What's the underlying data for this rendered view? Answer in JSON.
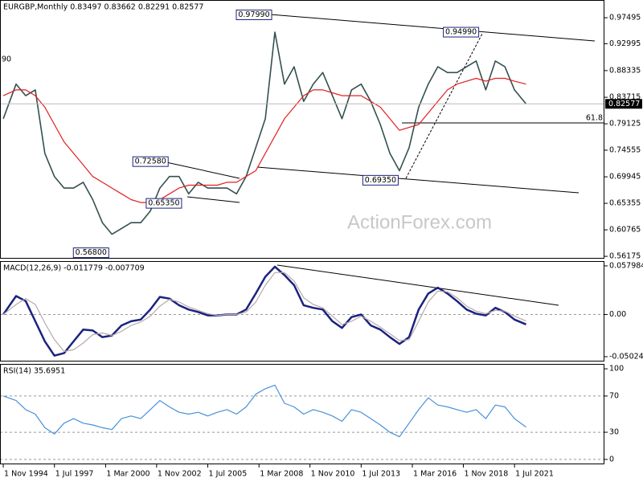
{
  "chart_data": [
    {
      "type": "line",
      "title": "EURGBP,Monthly  0.83497 0.83662 0.82291 0.82577",
      "watermark": "ActionForex.com",
      "edge_label": "90",
      "x": [
        1994.83,
        1995.5,
        1996.0,
        1996.5,
        1997.0,
        1997.5,
        1998.0,
        1998.5,
        1999.0,
        1999.5,
        2000.0,
        2000.5,
        2001.0,
        2001.5,
        2002.0,
        2002.5,
        2003.0,
        2003.5,
        2004.0,
        2004.5,
        2005.0,
        2005.5,
        2006.0,
        2006.5,
        2007.0,
        2007.5,
        2008.0,
        2008.5,
        2009.0,
        2009.5,
        2010.0,
        2010.5,
        2011.0,
        2011.5,
        2012.0,
        2012.5,
        2013.0,
        2013.5,
        2014.0,
        2014.5,
        2015.0,
        2015.5,
        2016.0,
        2016.5,
        2017.0,
        2017.5,
        2018.0,
        2018.5,
        2019.0,
        2019.5,
        2020.0,
        2020.5,
        2021.0,
        2021.5,
        2022.1
      ],
      "series": [
        {
          "name": "EURGBP",
          "color": "#34504f",
          "values": [
            0.8,
            0.86,
            0.84,
            0.85,
            0.74,
            0.7,
            0.68,
            0.68,
            0.69,
            0.66,
            0.62,
            0.6,
            0.61,
            0.62,
            0.62,
            0.64,
            0.68,
            0.7,
            0.7,
            0.67,
            0.69,
            0.68,
            0.68,
            0.68,
            0.67,
            0.7,
            0.75,
            0.8,
            0.95,
            0.86,
            0.89,
            0.83,
            0.86,
            0.88,
            0.84,
            0.8,
            0.85,
            0.86,
            0.83,
            0.79,
            0.74,
            0.71,
            0.75,
            0.82,
            0.86,
            0.89,
            0.88,
            0.88,
            0.89,
            0.9,
            0.85,
            0.9,
            0.89,
            0.85,
            0.82577
          ]
        },
        {
          "name": "MA",
          "color": "#e02020",
          "values": [
            0.84,
            0.85,
            0.85,
            0.84,
            0.82,
            0.79,
            0.76,
            0.74,
            0.72,
            0.7,
            0.69,
            0.68,
            0.67,
            0.66,
            0.655,
            0.655,
            0.66,
            0.67,
            0.68,
            0.685,
            0.685,
            0.685,
            0.685,
            0.69,
            0.69,
            0.7,
            0.71,
            0.74,
            0.77,
            0.8,
            0.82,
            0.84,
            0.85,
            0.85,
            0.845,
            0.84,
            0.84,
            0.84,
            0.83,
            0.82,
            0.8,
            0.78,
            0.785,
            0.79,
            0.81,
            0.83,
            0.85,
            0.86,
            0.865,
            0.87,
            0.865,
            0.87,
            0.87,
            0.865,
            0.86
          ]
        }
      ],
      "annotations": [
        {
          "x": 2009.0,
          "value": 0.9799,
          "label": "0.97990"
        },
        {
          "x": 2019.8,
          "value": 0.9499,
          "label": "0.94990"
        },
        {
          "x": 2003.6,
          "value": 0.7258,
          "label": "0.72580"
        },
        {
          "x": 2004.3,
          "value": 0.6535,
          "label": "0.65350"
        },
        {
          "x": 2015.6,
          "value": 0.6935,
          "label": "0.69350"
        },
        {
          "x": 2000.5,
          "value": 0.568,
          "label": "0.56800"
        }
      ],
      "levels": [
        {
          "value": 0.7927,
          "label": "61.8"
        }
      ],
      "xlim": [
        1994.66,
        2026.19
      ],
      "ylim": [
        0.5577,
        1.0056
      ],
      "yticks": [
        0.56175,
        0.60765,
        0.65355,
        0.69945,
        0.74555,
        0.79125,
        0.83715,
        0.88335,
        0.92995,
        0.97495
      ]
    },
    {
      "type": "line",
      "title": "MACD(12,26,9) -0.011779 -0.007709",
      "x": [
        1994.83,
        1995.5,
        1996.0,
        1996.5,
        1997.0,
        1997.5,
        1998.0,
        1998.5,
        1999.0,
        1999.5,
        2000.0,
        2000.5,
        2001.0,
        2001.5,
        2002.0,
        2002.5,
        2003.0,
        2003.5,
        2004.0,
        2004.5,
        2005.0,
        2005.5,
        2006.0,
        2006.5,
        2007.0,
        2007.5,
        2008.0,
        2008.5,
        2009.0,
        2009.5,
        2010.0,
        2010.5,
        2011.0,
        2011.5,
        2012.0,
        2012.5,
        2013.0,
        2013.5,
        2014.0,
        2014.5,
        2015.0,
        2015.5,
        2016.0,
        2016.5,
        2017.0,
        2017.5,
        2018.0,
        2018.5,
        2019.0,
        2019.5,
        2020.0,
        2020.5,
        2021.0,
        2021.5,
        2022.1
      ],
      "series": [
        {
          "name": "MACD",
          "color": "#1a237e",
          "values": [
            0.0,
            0.022,
            0.016,
            -0.008,
            -0.032,
            -0.049,
            -0.046,
            -0.032,
            -0.018,
            -0.019,
            -0.027,
            -0.025,
            -0.013,
            -0.008,
            -0.006,
            0.006,
            0.021,
            0.019,
            0.011,
            0.006,
            0.003,
            -0.001,
            -0.001,
            0.0,
            0.0,
            0.006,
            0.025,
            0.045,
            0.057,
            0.047,
            0.035,
            0.011,
            0.008,
            0.006,
            -0.008,
            -0.016,
            -0.003,
            0.0,
            -0.013,
            -0.018,
            -0.027,
            -0.035,
            -0.027,
            0.006,
            0.025,
            0.032,
            0.025,
            0.016,
            0.006,
            0.001,
            -0.001,
            0.008,
            0.003,
            -0.006,
            -0.011779
          ]
        },
        {
          "name": "Signal",
          "color": "#b9a9a9",
          "values": [
            0.0,
            0.012,
            0.019,
            0.012,
            -0.01,
            -0.03,
            -0.044,
            -0.042,
            -0.034,
            -0.024,
            -0.022,
            -0.025,
            -0.02,
            -0.013,
            -0.009,
            -0.002,
            0.01,
            0.018,
            0.015,
            0.009,
            0.005,
            0.001,
            -0.001,
            0.0,
            0.0,
            0.003,
            0.015,
            0.035,
            0.05,
            0.05,
            0.04,
            0.02,
            0.012,
            0.008,
            -0.002,
            -0.012,
            -0.008,
            -0.002,
            -0.008,
            -0.015,
            -0.023,
            -0.031,
            -0.03,
            -0.008,
            0.015,
            0.028,
            0.027,
            0.02,
            0.01,
            0.004,
            0.001,
            0.005,
            0.004,
            -0.002,
            -0.007709
          ]
        }
      ],
      "xlim": [
        1994.66,
        2026.19
      ],
      "ylim": [
        -0.056,
        0.0637
      ],
      "yticks": [
        -0.050241,
        {
          "value": 0,
          "label": "0.00"
        },
        0.057984
      ]
    },
    {
      "type": "line",
      "title": "RSI(14) 35.6951",
      "x": [
        1994.83,
        1995.5,
        1996.0,
        1996.5,
        1997.0,
        1997.5,
        1998.0,
        1998.5,
        1999.0,
        1999.5,
        2000.0,
        2000.5,
        2001.0,
        2001.5,
        2002.0,
        2002.5,
        2003.0,
        2003.5,
        2004.0,
        2004.5,
        2005.0,
        2005.5,
        2006.0,
        2006.5,
        2007.0,
        2007.5,
        2008.0,
        2008.5,
        2009.0,
        2009.5,
        2010.0,
        2010.5,
        2011.0,
        2011.5,
        2012.0,
        2012.5,
        2013.0,
        2013.5,
        2014.0,
        2014.5,
        2015.0,
        2015.5,
        2016.0,
        2016.5,
        2017.0,
        2017.5,
        2018.0,
        2018.5,
        2019.0,
        2019.5,
        2020.0,
        2020.5,
        2021.0,
        2021.5,
        2022.1
      ],
      "series": [
        {
          "name": "RSI",
          "color": "#4a90d9",
          "values": [
            70,
            65,
            55,
            50,
            35,
            28,
            40,
            45,
            40,
            38,
            35,
            33,
            45,
            48,
            45,
            55,
            65,
            58,
            52,
            50,
            52,
            48,
            52,
            55,
            50,
            58,
            72,
            78,
            82,
            62,
            58,
            50,
            55,
            52,
            48,
            42,
            55,
            52,
            45,
            38,
            30,
            25,
            40,
            55,
            68,
            60,
            58,
            55,
            52,
            55,
            45,
            60,
            58,
            45,
            35.6951
          ]
        }
      ],
      "xlim": [
        1994.66,
        2026.19
      ],
      "ylim": [
        -5.4,
        105.4
      ],
      "yticks": [
        0,
        30,
        70,
        100
      ],
      "xticks": [
        {
          "value": 1994.83,
          "label": "1 Nov 1994"
        },
        {
          "value": 1997.5,
          "label": "1 Jul 1997"
        },
        {
          "value": 2000.17,
          "label": "1 Mar 2000"
        },
        {
          "value": 2002.83,
          "label": "1 Nov 2002"
        },
        {
          "value": 2005.5,
          "label": "1 Jul 2005"
        },
        {
          "value": 2008.17,
          "label": "1 Mar 2008"
        },
        {
          "value": 2010.83,
          "label": "1 Nov 2010"
        },
        {
          "value": 2013.5,
          "label": "1 Jul 2013"
        },
        {
          "value": 2016.17,
          "label": "1 Mar 2016"
        },
        {
          "value": 2018.83,
          "label": "1 Nov 2018"
        },
        {
          "value": 2021.5,
          "label": "1 Jul 2021"
        }
      ]
    }
  ]
}
